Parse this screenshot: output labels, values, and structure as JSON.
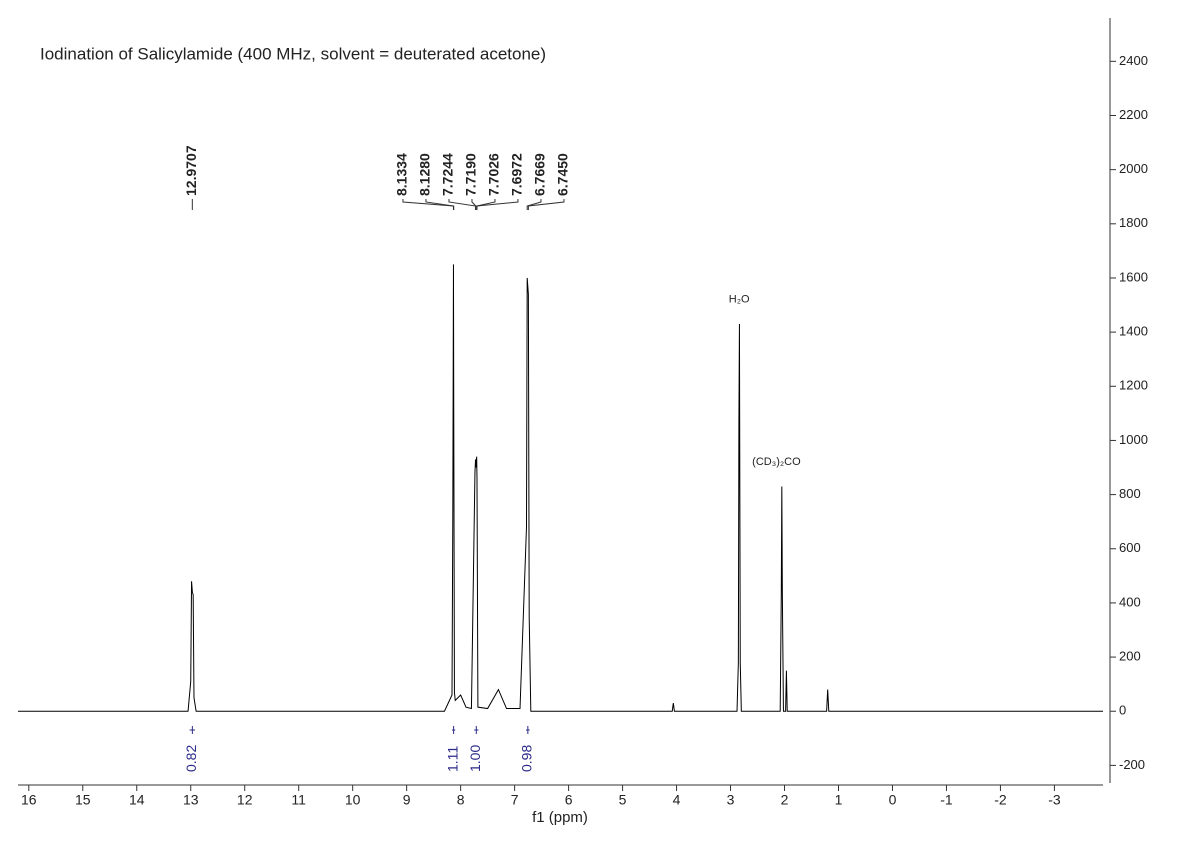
{
  "chart_data": {
    "type": "line",
    "title": "Iodination of Salicylamide (400 MHz, solvent = deuterated acetone)",
    "x_label": "f1 (ppm)",
    "color": "#000000",
    "x": [
      16.2,
      13.05,
      13.0,
      12.985,
      12.97,
      12.955,
      12.94,
      12.9,
      8.3,
      8.16,
      8.145,
      8.133,
      8.128,
      8.115,
      8.1,
      8.0,
      7.9,
      7.8,
      7.735,
      7.724,
      7.719,
      7.703,
      7.697,
      7.68,
      7.5,
      7.3,
      7.15,
      6.9,
      6.78,
      6.767,
      6.745,
      6.73,
      6.7,
      4.08,
      4.06,
      4.04,
      2.88,
      2.855,
      2.845,
      2.835,
      2.82,
      2.8,
      2.08,
      2.06,
      2.05,
      2.04,
      2.02,
      1.98,
      1.965,
      1.95,
      1.22,
      1.2,
      1.18,
      -3.9
    ],
    "values": [
      0,
      0,
      110,
      480,
      440,
      430,
      50,
      0,
      0,
      60,
      720,
      1650,
      1140,
      70,
      40,
      60,
      15,
      10,
      880,
      930,
      900,
      940,
      860,
      15,
      10,
      80,
      10,
      10,
      680,
      1600,
      1540,
      350,
      0,
      0,
      30,
      0,
      0,
      180,
      1070,
      1430,
      180,
      0,
      0,
      430,
      830,
      430,
      0,
      0,
      150,
      0,
      0,
      80,
      0,
      0
    ],
    "xlim": [
      16.2,
      -3.9
    ],
    "xticks": [
      16,
      15,
      14,
      13,
      12,
      11,
      10,
      9,
      8,
      7,
      6,
      5,
      4,
      3,
      2,
      1,
      0,
      -1,
      -2,
      -3
    ],
    "ylim": [
      -265,
      2560
    ],
    "yticks": [
      -200,
      0,
      200,
      400,
      600,
      800,
      1000,
      1200,
      1400,
      1600,
      1800,
      2000,
      2200,
      2400
    ],
    "peak_labels": [
      "12.9707",
      "8.1334",
      "8.1280",
      "7.7244",
      "7.7190",
      "7.7026",
      "7.6972",
      "6.7669",
      "6.7450"
    ],
    "integrals": [
      {
        "range": [
          13.02,
          12.92
        ],
        "value": 0.82,
        "label": "0.82"
      },
      {
        "range": [
          8.16,
          8.1
        ],
        "value": 1.11,
        "label": "1.11"
      },
      {
        "range": [
          7.75,
          7.67
        ],
        "value": 1.0,
        "label": "1.00"
      },
      {
        "range": [
          6.79,
          6.72
        ],
        "value": 0.98,
        "label": "0.98"
      }
    ],
    "annotations": [
      {
        "text": "H₂O",
        "x": 2.84,
        "y": 1520
      },
      {
        "text": "(CD₃)₂CO",
        "x": 2.15,
        "y": 920
      }
    ]
  }
}
